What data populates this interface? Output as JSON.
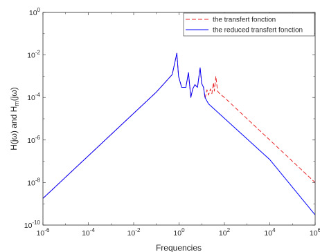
{
  "chart_data": {
    "type": "line",
    "xscale": "log",
    "yscale": "log",
    "xlabel": "Frequencies",
    "ylabel_parts": [
      "H(j",
      "ω",
      ") and H",
      "m",
      "(j",
      "ω",
      ")"
    ],
    "xlim": [
      1e-06,
      1000000.0
    ],
    "ylim": [
      1e-10,
      1
    ],
    "x_ticks": [
      {
        "value": 1e-06,
        "base": "10",
        "exp": "-6"
      },
      {
        "value": 0.0001,
        "base": "10",
        "exp": "-4"
      },
      {
        "value": 0.01,
        "base": "10",
        "exp": "-2"
      },
      {
        "value": 1,
        "base": "10",
        "exp": "0"
      },
      {
        "value": 100.0,
        "base": "10",
        "exp": "2"
      },
      {
        "value": 10000.0,
        "base": "10",
        "exp": "4"
      },
      {
        "value": 1000000.0,
        "base": "10",
        "exp": "6"
      }
    ],
    "y_ticks": [
      {
        "value": 1e-10,
        "base": "10",
        "exp": "-10"
      },
      {
        "value": 1e-08,
        "base": "10",
        "exp": "-8"
      },
      {
        "value": 1e-06,
        "base": "10",
        "exp": "-6"
      },
      {
        "value": 0.0001,
        "base": "10",
        "exp": "-4"
      },
      {
        "value": 0.01,
        "base": "10",
        "exp": "-2"
      },
      {
        "value": 1,
        "base": "10",
        "exp": "0"
      }
    ],
    "grid": false,
    "legend_position": "top-right",
    "series": [
      {
        "name": "the transfert fonction",
        "color": "#e8262a",
        "dash": "dashed",
        "points": [
          [
            1e-06,
            1.8e-09
          ],
          [
            0.0001,
            1.8e-07
          ],
          [
            0.01,
            1.8e-05
          ],
          [
            0.1,
            0.00018
          ],
          [
            0.5,
            0.0012
          ],
          [
            0.8,
            0.012
          ],
          [
            0.95,
            0.001
          ],
          [
            1.3,
            0.0003
          ],
          [
            2.0,
            0.0003
          ],
          [
            2.6,
            0.0015
          ],
          [
            3.3,
            0.0001
          ],
          [
            4.0,
            0.00025
          ],
          [
            5.0,
            0.0004
          ],
          [
            6.5,
            0.0003
          ],
          [
            8.5,
            0.0025
          ],
          [
            10,
            0.00045
          ],
          [
            12,
            0.0003
          ],
          [
            14,
            9e-05
          ],
          [
            17,
            0.00023
          ],
          [
            20,
            0.00013
          ],
          [
            24,
            0.00025
          ],
          [
            28,
            0.00015
          ],
          [
            33,
            0.0005
          ],
          [
            36,
            0.0002
          ],
          [
            42,
            0.001
          ],
          [
            50,
            0.0002
          ],
          [
            62,
            0.00015
          ],
          [
            100,
            0.0001
          ],
          [
            10000.0,
            1e-06
          ],
          [
            1000000.0,
            1e-08
          ]
        ]
      },
      {
        "name": "the reduced transfert fonction",
        "color": "#0000ff",
        "dash": "solid",
        "points": [
          [
            1e-06,
            1.8e-09
          ],
          [
            0.0001,
            1.8e-07
          ],
          [
            0.01,
            1.8e-05
          ],
          [
            0.1,
            0.00018
          ],
          [
            0.5,
            0.0012
          ],
          [
            0.8,
            0.012
          ],
          [
            0.95,
            0.001
          ],
          [
            1.3,
            0.0003
          ],
          [
            2.0,
            0.0003
          ],
          [
            2.6,
            0.0015
          ],
          [
            3.3,
            0.0001
          ],
          [
            4.0,
            0.00025
          ],
          [
            5.0,
            0.0004
          ],
          [
            6.5,
            0.0003
          ],
          [
            8.5,
            0.0025
          ],
          [
            10,
            0.00045
          ],
          [
            12,
            0.0003
          ],
          [
            14,
            0.0001
          ],
          [
            20,
            5e-05
          ],
          [
            10000.0,
            1.2e-07
          ],
          [
            1000000.0,
            3e-10
          ]
        ]
      }
    ]
  }
}
